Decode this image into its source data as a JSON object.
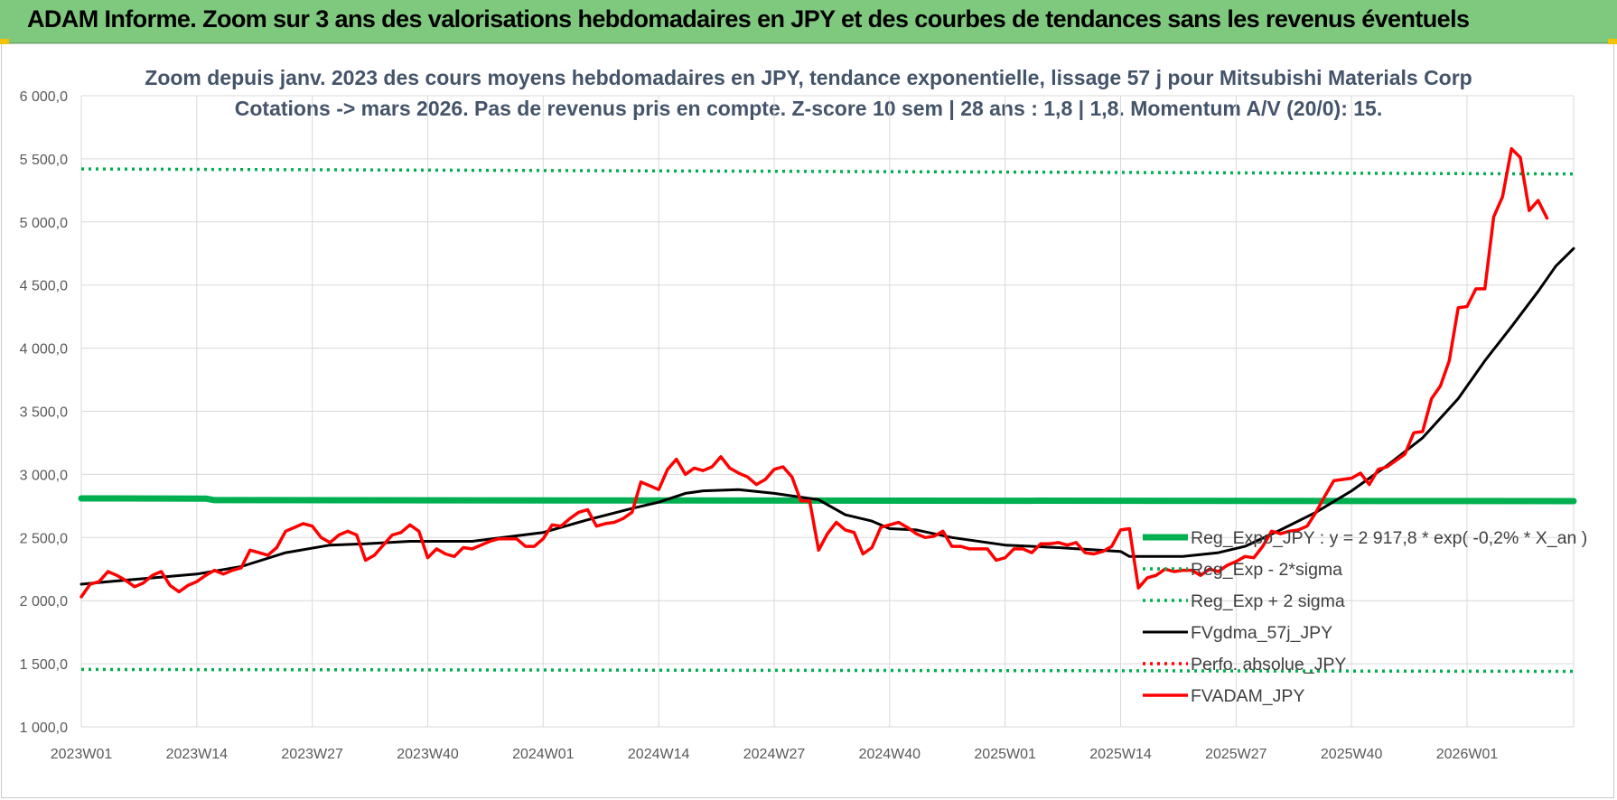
{
  "banner": {
    "title": "ADAM Informe. Zoom sur 3 ans des valorisations hebdomadaires en JPY et des courbes de tendances sans les revenus éventuels"
  },
  "colors": {
    "banner_bg": "#7fc97f",
    "reg_exp": "#00b050",
    "sigma": "#00b050",
    "fvgdma": "#000000",
    "perfo": "#ff0000",
    "fvadam": "#ff0000",
    "grid": "#d9d9d9"
  },
  "chart_data": {
    "type": "line",
    "title": "Zoom depuis janv. 2023 des cours moyens hebdomadaires en JPY, tendance exponentielle, lissage 57 j pour Mitsubishi Materials Corp",
    "subtitle": "Cotations -> mars 2026. Pas de revenus pris en compte. Z-score 10 sem | 28 ans : 1,8 | 1,8. Momentum A/V (20/0): 15.",
    "xlabel": "",
    "ylabel": "",
    "ylim": [
      1000,
      6000
    ],
    "yticks": [
      1000,
      1500,
      2000,
      2500,
      3000,
      3500,
      4000,
      4500,
      5000,
      5500,
      6000
    ],
    "ytick_labels": [
      "1 000,0",
      "1 500,0",
      "2 000,0",
      "2 500,0",
      "3 000,0",
      "3 500,0",
      "4 000,0",
      "4 500,0",
      "5 000,0",
      "5 500,0",
      "6 000,0"
    ],
    "x_ticks": [
      {
        "i": 0,
        "label": "2023W01"
      },
      {
        "i": 13,
        "label": "2023W14"
      },
      {
        "i": 26,
        "label": "2023W27"
      },
      {
        "i": 39,
        "label": "2023W40"
      },
      {
        "i": 52,
        "label": "2024W01"
      },
      {
        "i": 65,
        "label": "2024W14"
      },
      {
        "i": 78,
        "label": "2024W27"
      },
      {
        "i": 91,
        "label": "2024W40"
      },
      {
        "i": 104,
        "label": "2025W01"
      },
      {
        "i": 117,
        "label": "2025W14"
      },
      {
        "i": 130,
        "label": "2025W27"
      },
      {
        "i": 143,
        "label": "2025W40"
      },
      {
        "i": 156,
        "label": "2026W01"
      }
    ],
    "x_count": 169,
    "grid": true,
    "legend_position": "right",
    "series": [
      {
        "name": "Reg_Expo_JPY : y = 2 917,8 * exp( -0,2% *  X_an )",
        "style": "solid-thick",
        "color": "#00b050",
        "points": [
          [
            0,
            2810
          ],
          [
            14,
            2808
          ],
          [
            15,
            2796
          ],
          [
            168,
            2788
          ]
        ]
      },
      {
        "name": "Reg_Exp - 2*sigma",
        "style": "dotted",
        "color": "#00b050",
        "points": [
          [
            0,
            1455
          ],
          [
            168,
            1440
          ]
        ]
      },
      {
        "name": "Reg_Exp + 2 sigma",
        "style": "dotted",
        "color": "#00b050",
        "points": [
          [
            0,
            5420
          ],
          [
            168,
            5380
          ]
        ]
      },
      {
        "name": "FVgdma_57j_JPY",
        "style": "solid",
        "color": "#000000",
        "points": [
          [
            0,
            2130
          ],
          [
            3,
            2150
          ],
          [
            8,
            2180
          ],
          [
            13,
            2210
          ],
          [
            18,
            2270
          ],
          [
            23,
            2380
          ],
          [
            28,
            2440
          ],
          [
            32,
            2450
          ],
          [
            37,
            2470
          ],
          [
            44,
            2470
          ],
          [
            52,
            2540
          ],
          [
            57,
            2640
          ],
          [
            62,
            2730
          ],
          [
            65,
            2780
          ],
          [
            68,
            2850
          ],
          [
            70,
            2870
          ],
          [
            74,
            2880
          ],
          [
            78,
            2850
          ],
          [
            83,
            2800
          ],
          [
            86,
            2680
          ],
          [
            89,
            2630
          ],
          [
            91,
            2570
          ],
          [
            94,
            2560
          ],
          [
            98,
            2500
          ],
          [
            104,
            2440
          ],
          [
            110,
            2420
          ],
          [
            117,
            2390
          ],
          [
            118,
            2350
          ],
          [
            124,
            2350
          ],
          [
            128,
            2380
          ],
          [
            131,
            2430
          ],
          [
            135,
            2560
          ],
          [
            139,
            2700
          ],
          [
            143,
            2870
          ],
          [
            147,
            3070
          ],
          [
            151,
            3290
          ],
          [
            155,
            3600
          ],
          [
            158,
            3900
          ],
          [
            161,
            4170
          ],
          [
            164,
            4450
          ],
          [
            166,
            4650
          ],
          [
            168,
            4790
          ]
        ]
      },
      {
        "name": "Perfo. absolue_JPY",
        "style": "dotted",
        "color": "#ff0000",
        "points": []
      },
      {
        "name": "FVADAM_JPY",
        "style": "solid",
        "color": "#ff0000",
        "points": [
          [
            0,
            2030
          ],
          [
            1,
            2130
          ],
          [
            2,
            2150
          ],
          [
            3,
            2230
          ],
          [
            4,
            2200
          ],
          [
            5,
            2160
          ],
          [
            6,
            2110
          ],
          [
            7,
            2140
          ],
          [
            8,
            2200
          ],
          [
            9,
            2230
          ],
          [
            10,
            2120
          ],
          [
            11,
            2070
          ],
          [
            12,
            2120
          ],
          [
            13,
            2150
          ],
          [
            14,
            2200
          ],
          [
            15,
            2240
          ],
          [
            16,
            2210
          ],
          [
            17,
            2240
          ],
          [
            18,
            2260
          ],
          [
            19,
            2400
          ],
          [
            20,
            2380
          ],
          [
            21,
            2360
          ],
          [
            22,
            2420
          ],
          [
            23,
            2550
          ],
          [
            24,
            2580
          ],
          [
            25,
            2610
          ],
          [
            26,
            2590
          ],
          [
            27,
            2500
          ],
          [
            28,
            2460
          ],
          [
            29,
            2520
          ],
          [
            30,
            2550
          ],
          [
            31,
            2520
          ],
          [
            32,
            2320
          ],
          [
            33,
            2360
          ],
          [
            34,
            2440
          ],
          [
            35,
            2520
          ],
          [
            36,
            2540
          ],
          [
            37,
            2600
          ],
          [
            38,
            2550
          ],
          [
            39,
            2340
          ],
          [
            40,
            2410
          ],
          [
            41,
            2370
          ],
          [
            42,
            2350
          ],
          [
            43,
            2420
          ],
          [
            44,
            2410
          ],
          [
            45,
            2440
          ],
          [
            46,
            2470
          ],
          [
            47,
            2490
          ],
          [
            48,
            2490
          ],
          [
            49,
            2490
          ],
          [
            50,
            2430
          ],
          [
            51,
            2430
          ],
          [
            52,
            2490
          ],
          [
            53,
            2600
          ],
          [
            54,
            2590
          ],
          [
            55,
            2650
          ],
          [
            56,
            2700
          ],
          [
            57,
            2720
          ],
          [
            58,
            2590
          ],
          [
            59,
            2610
          ],
          [
            60,
            2620
          ],
          [
            61,
            2650
          ],
          [
            62,
            2700
          ],
          [
            63,
            2940
          ],
          [
            64,
            2910
          ],
          [
            65,
            2880
          ],
          [
            66,
            3040
          ],
          [
            67,
            3120
          ],
          [
            68,
            3000
          ],
          [
            69,
            3050
          ],
          [
            70,
            3030
          ],
          [
            71,
            3060
          ],
          [
            72,
            3140
          ],
          [
            73,
            3050
          ],
          [
            74,
            3010
          ],
          [
            75,
            2980
          ],
          [
            76,
            2920
          ],
          [
            77,
            2960
          ],
          [
            78,
            3040
          ],
          [
            79,
            3060
          ],
          [
            80,
            2980
          ],
          [
            81,
            2790
          ],
          [
            82,
            2790
          ],
          [
            83,
            2400
          ],
          [
            84,
            2530
          ],
          [
            85,
            2620
          ],
          [
            86,
            2560
          ],
          [
            87,
            2540
          ],
          [
            88,
            2370
          ],
          [
            89,
            2420
          ],
          [
            90,
            2580
          ],
          [
            91,
            2600
          ],
          [
            92,
            2620
          ],
          [
            93,
            2580
          ],
          [
            94,
            2530
          ],
          [
            95,
            2500
          ],
          [
            96,
            2510
          ],
          [
            97,
            2550
          ],
          [
            98,
            2430
          ],
          [
            99,
            2430
          ],
          [
            100,
            2410
          ],
          [
            101,
            2410
          ],
          [
            102,
            2410
          ],
          [
            103,
            2320
          ],
          [
            104,
            2340
          ],
          [
            105,
            2410
          ],
          [
            106,
            2410
          ],
          [
            107,
            2380
          ],
          [
            108,
            2450
          ],
          [
            109,
            2450
          ],
          [
            110,
            2460
          ],
          [
            111,
            2440
          ],
          [
            112,
            2460
          ],
          [
            113,
            2380
          ],
          [
            114,
            2370
          ],
          [
            115,
            2390
          ],
          [
            116,
            2430
          ],
          [
            117,
            2560
          ],
          [
            118,
            2570
          ],
          [
            119,
            2100
          ],
          [
            120,
            2180
          ],
          [
            121,
            2200
          ],
          [
            122,
            2250
          ],
          [
            123,
            2230
          ],
          [
            124,
            2240
          ],
          [
            125,
            2240
          ],
          [
            126,
            2200
          ],
          [
            127,
            2250
          ],
          [
            128,
            2230
          ],
          [
            129,
            2280
          ],
          [
            130,
            2310
          ],
          [
            131,
            2350
          ],
          [
            132,
            2340
          ],
          [
            133,
            2430
          ],
          [
            134,
            2550
          ],
          [
            135,
            2530
          ],
          [
            136,
            2550
          ],
          [
            137,
            2560
          ],
          [
            138,
            2590
          ],
          [
            139,
            2700
          ],
          [
            140,
            2830
          ],
          [
            141,
            2950
          ],
          [
            142,
            2960
          ],
          [
            143,
            2970
          ],
          [
            144,
            3010
          ],
          [
            145,
            2920
          ],
          [
            146,
            3040
          ],
          [
            147,
            3060
          ],
          [
            148,
            3110
          ],
          [
            149,
            3160
          ],
          [
            150,
            3330
          ],
          [
            151,
            3340
          ],
          [
            152,
            3600
          ],
          [
            153,
            3700
          ],
          [
            154,
            3900
          ],
          [
            155,
            4320
          ],
          [
            156,
            4330
          ],
          [
            157,
            4470
          ],
          [
            158,
            4470
          ],
          [
            159,
            5040
          ],
          [
            160,
            5200
          ],
          [
            161,
            5580
          ],
          [
            162,
            5510
          ],
          [
            163,
            5090
          ],
          [
            164,
            5170
          ],
          [
            165,
            5030
          ]
        ]
      }
    ]
  }
}
